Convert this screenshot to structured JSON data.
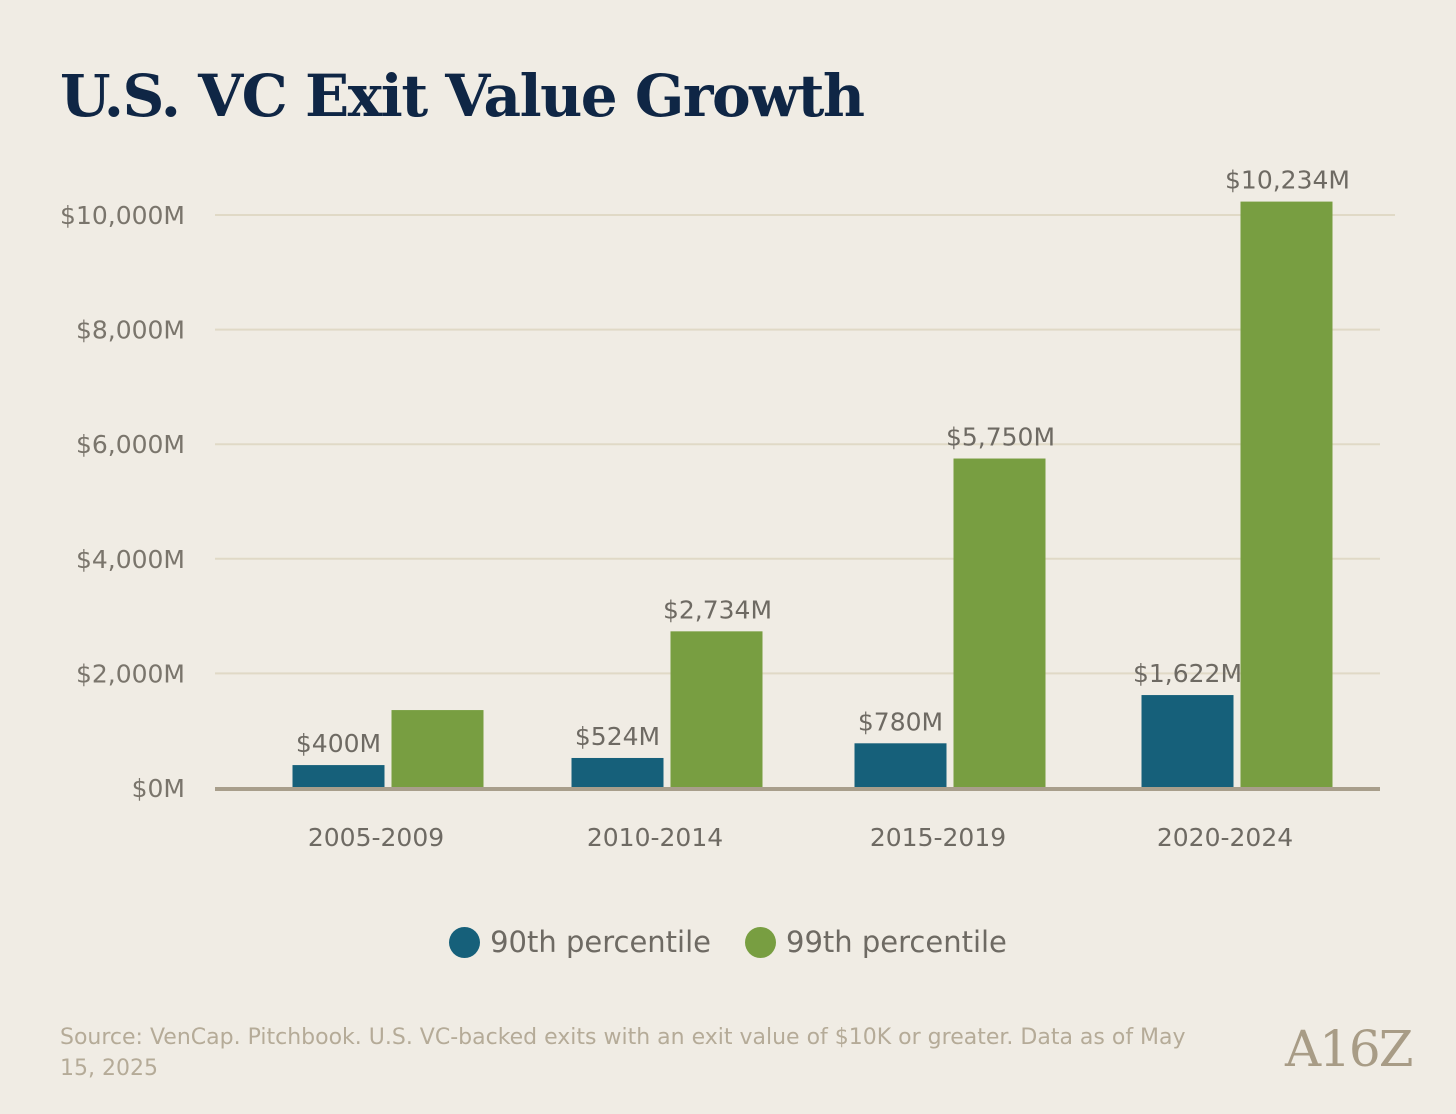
{
  "chart_data": {
    "type": "bar",
    "title": "U.S. VC Exit Value Growth",
    "xlabel": "",
    "ylabel": "",
    "categories": [
      "2005-2009",
      "2010-2014",
      "2015-2019",
      "2020-2024"
    ],
    "series": [
      {
        "name": "90th percentile",
        "color": "#16607a",
        "values": [
          400,
          524,
          780,
          1622
        ],
        "labels": [
          "$400M",
          "$524M",
          "$780M",
          "$1,622M"
        ]
      },
      {
        "name": "99th percentile",
        "color": "#789e41",
        "values": [
          1360,
          2734,
          5750,
          10234
        ],
        "labels": [
          null,
          "$2,734M",
          "$5,750M",
          "$10,234M"
        ]
      }
    ],
    "ylim": [
      0,
      10000
    ],
    "yticks": [
      0,
      2000,
      4000,
      6000,
      8000,
      10000
    ],
    "ytick_labels": [
      "$0M",
      "$2,000M",
      "$4,000M",
      "$6,000M",
      "$8,000M",
      "$10,000M"
    ],
    "grid": true,
    "legend_position": "bottom-center"
  },
  "source": "Source: VenCap. Pitchbook. U.S. VC-backed exits with an exit value of $10K or greater. Data as of May 15, 2025",
  "logo": "A16Z"
}
